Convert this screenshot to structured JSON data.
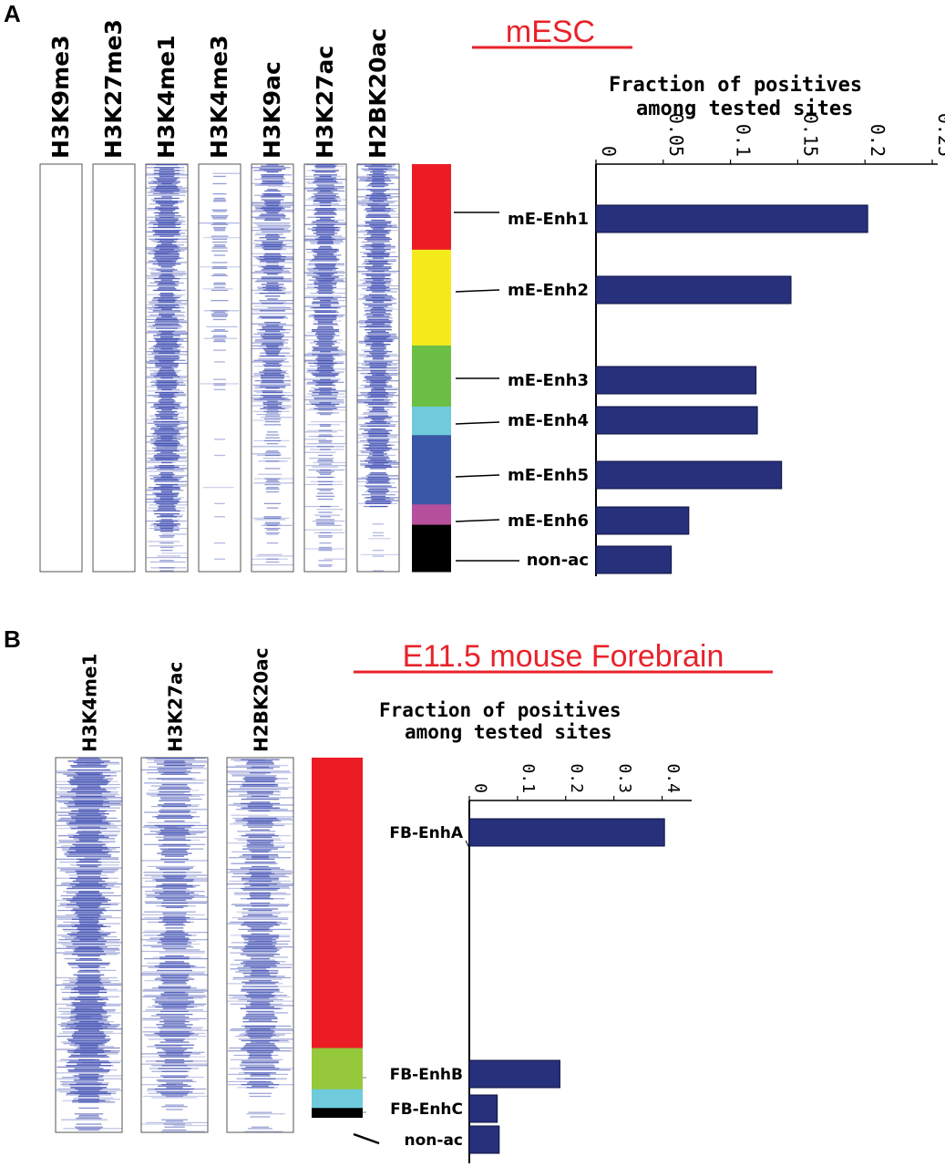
{
  "figure": {
    "panel_a_letter": "A",
    "panel_b_letter": "B"
  },
  "colors": {
    "title": "#e8222a",
    "bar": "#27307a",
    "heatmap": "#3a49b0",
    "cluster_red": "#ec1c24",
    "cluster_yellow": "#f5ea1c",
    "cluster_green": "#6cbf45",
    "cluster_lightgreen": "#96c83c",
    "cluster_cyan": "#6fcbdc",
    "cluster_blue": "#3a56a6",
    "cluster_magenta": "#b64f9c",
    "cluster_black": "#000000"
  },
  "panel_a": {
    "title": "mESC",
    "heatmap_columns": [
      "H3K9me3",
      "H3K27me3",
      "H3K4me1",
      "H3K4me3",
      "H3K9ac",
      "H3K27ac",
      "H2BK20ac"
    ],
    "clusters": [
      {
        "color": "#ec1c24",
        "fraction": 0.21
      },
      {
        "color": "#f5ea1c",
        "fraction": 0.235
      },
      {
        "color": "#6cbf45",
        "fraction": 0.15
      },
      {
        "color": "#6fcbdc",
        "fraction": 0.07
      },
      {
        "color": "#3a56a6",
        "fraction": 0.17
      },
      {
        "color": "#b64f9c",
        "fraction": 0.05
      },
      {
        "color": "#000000",
        "fraction": 0.115
      }
    ]
  },
  "panel_b": {
    "title": "E11.5 mouse Forebrain",
    "heatmap_columns": [
      "H3K4me1",
      "H3K27ac",
      "H2BK20ac"
    ],
    "clusters": [
      {
        "color": "#ec1c24",
        "fraction": 0.775
      },
      {
        "color": "#96c83c",
        "fraction": 0.11
      },
      {
        "color": "#6fcbdc",
        "fraction": 0.05
      },
      {
        "color": "#000000",
        "fraction": 0.025
      }
    ]
  },
  "chart_data": [
    {
      "type": "bar",
      "orientation": "horizontal",
      "title": "mESC",
      "xlabel": "Fraction of positives among tested sites",
      "xlabel_lines": [
        "Fraction of positives",
        "among tested sites"
      ],
      "categories": [
        "mE-Enh1",
        "mE-Enh2",
        "mE-Enh3",
        "mE-Enh4",
        "mE-Enh5",
        "mE-Enh6",
        "non-ac"
      ],
      "values": [
        0.202,
        0.145,
        0.119,
        0.12,
        0.138,
        0.069,
        0.056
      ],
      "xlim": [
        0,
        0.25
      ],
      "ticks": [
        0,
        0.05,
        0.1,
        0.15,
        0.2,
        0.25
      ],
      "tick_labels": [
        "0",
        "0.05",
        "0.1",
        "0.15",
        "0.2",
        "0.25"
      ],
      "legend": "none",
      "grid": false
    },
    {
      "type": "bar",
      "orientation": "horizontal",
      "title": "E11.5 mouse Forebrain",
      "xlabel": "Fraction of positives among tested sites",
      "xlabel_lines": [
        "Fraction of positives",
        "among tested sites"
      ],
      "categories": [
        "FB-EnhA",
        "FB-EnhB",
        "FB-EnhC",
        "non-ac"
      ],
      "values": [
        0.405,
        0.188,
        0.058,
        0.062
      ],
      "xlim": [
        0,
        0.45
      ],
      "ticks": [
        0,
        0.1,
        0.2,
        0.3,
        0.4
      ],
      "tick_labels": [
        "0",
        "0.1",
        "0.2",
        "0.3",
        "0.4"
      ],
      "legend": "none",
      "grid": false
    }
  ]
}
